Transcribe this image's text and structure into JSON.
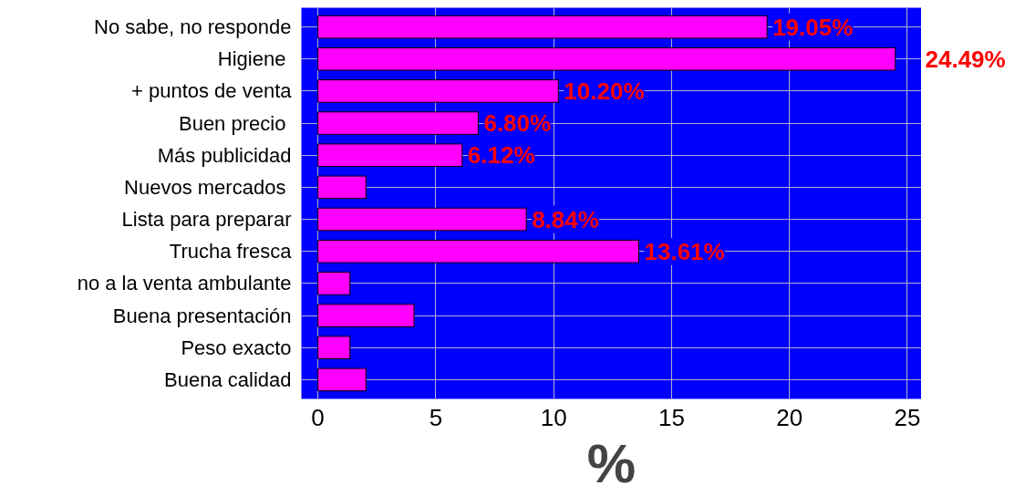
{
  "chart_data": {
    "type": "bar",
    "orientation": "horizontal",
    "xlabel": "%",
    "categories": [
      "No sabe, no responde",
      "Higiene ",
      "+ puntos de venta",
      "Buen precio ",
      "Más publicidad",
      "Nuevos mercados ",
      "Lista para preparar",
      "Trucha fresca",
      "no a la venta ambulante",
      "Buena presentación",
      "Peso exacto",
      "Buena calidad"
    ],
    "values": [
      19.05,
      24.49,
      10.2,
      6.8,
      6.12,
      2.04,
      8.84,
      13.61,
      1.36,
      4.08,
      1.36,
      2.04
    ],
    "value_labels": [
      "19.05%",
      "24.49%",
      "10.20%",
      "6.80%",
      "6.12%",
      null,
      "8.84%",
      "13.61%",
      null,
      null,
      null,
      null
    ],
    "color": "#ff00ff",
    "xlim": [
      -0.7,
      25.6
    ],
    "xticks": [
      0,
      5,
      10,
      15,
      20,
      25
    ],
    "grid": true
  }
}
